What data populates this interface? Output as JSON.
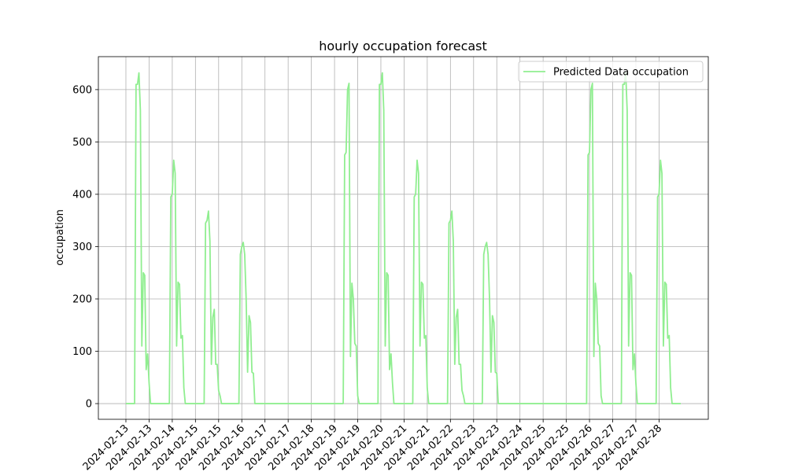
{
  "chart_data": {
    "type": "line",
    "title": "hourly occupation forecast",
    "y_label": "occupation",
    "x": [
      0,
      1,
      2,
      3,
      4,
      5,
      6,
      7,
      8,
      9,
      10,
      11,
      12,
      13,
      14,
      15,
      16,
      17,
      18,
      19,
      20,
      21,
      22,
      23,
      24,
      25,
      26,
      27,
      28,
      29,
      30,
      31,
      32,
      33,
      34,
      35,
      36,
      37,
      38,
      39,
      40,
      41,
      42,
      43,
      44,
      45,
      46,
      47,
      48,
      49,
      50,
      51,
      52,
      53,
      54,
      55,
      56,
      57,
      58,
      59,
      60,
      61,
      62,
      63,
      64,
      65,
      66,
      67,
      68,
      69,
      70,
      71,
      72,
      73,
      74,
      75,
      76,
      77,
      78,
      79,
      80,
      81,
      82,
      83,
      84,
      85,
      86,
      87,
      88,
      89,
      90,
      91,
      92,
      93,
      94,
      95,
      96,
      97,
      98,
      99,
      100,
      101,
      102,
      103,
      104,
      105,
      106,
      107,
      108,
      109,
      110,
      111,
      112,
      113,
      114,
      115,
      116,
      117,
      118,
      119,
      120,
      121,
      122,
      123,
      124,
      125,
      126,
      127,
      128,
      129,
      130,
      131,
      132,
      133,
      134,
      135,
      136,
      137,
      138,
      139,
      140,
      141,
      142,
      143,
      144,
      145,
      146,
      147,
      148,
      149,
      150,
      151,
      152,
      153,
      154,
      155,
      156,
      157,
      158,
      159,
      160,
      161,
      162,
      163,
      164,
      165,
      166,
      167,
      168,
      169,
      170,
      171,
      172,
      173,
      174,
      175,
      176,
      177,
      178,
      179,
      180,
      181,
      182,
      183,
      184,
      185,
      186,
      187,
      188,
      189,
      190,
      191,
      192,
      193,
      194,
      195,
      196,
      197,
      198,
      199,
      200,
      201,
      202,
      203,
      204,
      205,
      206,
      207,
      208,
      209,
      210,
      211,
      212,
      213,
      214,
      215,
      216,
      217,
      218,
      219,
      220,
      221,
      222,
      223,
      224,
      225,
      226,
      227,
      228,
      229,
      230,
      231,
      232,
      233,
      234,
      235,
      236,
      237,
      238,
      239,
      240,
      241,
      242,
      243,
      244,
      245,
      246,
      247,
      248,
      249,
      250,
      251,
      252,
      253,
      254,
      255,
      256,
      257,
      258,
      259,
      260,
      261,
      262,
      263,
      264,
      265,
      266,
      267,
      268,
      269,
      270,
      271,
      272,
      273,
      274,
      275,
      276,
      277,
      278,
      279,
      280,
      281,
      282,
      283,
      284,
      285,
      286,
      287,
      288,
      289,
      290,
      291,
      292,
      293,
      294,
      295,
      296,
      297,
      298,
      299,
      300,
      301,
      302,
      303,
      304,
      305,
      306,
      307,
      308,
      309,
      310,
      311,
      312,
      313,
      314,
      315,
      316,
      317,
      318,
      319,
      320,
      321,
      322,
      323,
      324,
      325,
      326,
      327,
      328,
      329,
      330,
      331,
      332,
      333,
      334,
      335,
      336,
      337,
      338,
      339,
      340,
      341,
      342,
      343,
      344,
      345,
      346,
      347,
      348,
      349,
      350,
      351,
      352,
      353,
      354,
      355,
      356,
      357,
      358,
      359,
      360,
      361,
      362,
      363,
      364,
      365,
      366,
      367,
      368,
      369,
      370,
      371,
      372,
      373,
      374,
      375,
      376,
      377,
      378,
      379,
      380,
      381,
      382,
      383
    ],
    "series": [
      {
        "name": "Predicted Data occupation",
        "color": "#90ee90",
        "values": [
          0,
          0,
          0,
          0,
          0,
          0,
          0,
          610,
          610,
          632,
          560,
          110,
          250,
          245,
          65,
          95,
          40,
          0,
          0,
          0,
          0,
          0,
          0,
          0,
          0,
          0,
          0,
          0,
          0,
          0,
          0,
          395,
          400,
          465,
          440,
          110,
          232,
          228,
          125,
          130,
          30,
          0,
          0,
          0,
          0,
          0,
          0,
          0,
          0,
          0,
          0,
          0,
          0,
          0,
          0,
          345,
          350,
          368,
          310,
          75,
          165,
          180,
          75,
          75,
          25,
          15,
          0,
          0,
          0,
          0,
          0,
          0,
          0,
          0,
          0,
          0,
          0,
          0,
          0,
          285,
          300,
          308,
          285,
          200,
          60,
          168,
          155,
          60,
          58,
          0,
          0,
          0,
          0,
          0,
          0,
          0,
          0,
          0,
          0,
          0,
          0,
          0,
          0,
          0,
          0,
          0,
          0,
          0,
          0,
          0,
          0,
          0,
          0,
          0,
          0,
          0,
          0,
          0,
          0,
          0,
          0,
          0,
          0,
          0,
          0,
          0,
          0,
          0,
          0,
          0,
          0,
          0,
          0,
          0,
          0,
          0,
          0,
          0,
          0,
          0,
          0,
          0,
          0,
          0,
          0,
          0,
          0,
          0,
          0,
          0,
          0,
          475,
          480,
          600,
          612,
          90,
          230,
          200,
          115,
          110,
          15,
          0,
          0,
          0,
          0,
          0,
          0,
          0,
          0,
          0,
          0,
          0,
          0,
          0,
          0,
          610,
          610,
          632,
          560,
          110,
          250,
          245,
          65,
          95,
          40,
          0,
          0,
          0,
          0,
          0,
          0,
          0,
          0,
          0,
          0,
          0,
          0,
          0,
          0,
          395,
          400,
          465,
          440,
          110,
          232,
          228,
          125,
          130,
          30,
          0,
          0,
          0,
          0,
          0,
          0,
          0,
          0,
          0,
          0,
          0,
          0,
          0,
          0,
          345,
          350,
          368,
          310,
          75,
          165,
          180,
          75,
          75,
          25,
          15,
          0,
          0,
          0,
          0,
          0,
          0,
          0,
          0,
          0,
          0,
          0,
          0,
          0,
          285,
          300,
          308,
          285,
          200,
          60,
          168,
          155,
          60,
          58,
          0,
          0,
          0,
          0,
          0,
          0,
          0,
          0,
          0,
          0,
          0,
          0,
          0,
          0,
          0,
          0,
          0,
          0,
          0,
          0,
          0,
          0,
          0,
          0,
          0,
          0,
          0,
          0,
          0,
          0,
          0,
          0,
          0,
          0,
          0,
          0,
          0,
          0,
          0,
          0,
          0,
          0,
          0,
          0,
          0,
          0,
          0,
          0,
          0,
          0,
          0,
          0,
          0,
          0,
          0,
          0,
          0,
          0,
          0,
          0,
          0,
          0,
          475,
          480,
          600,
          612,
          90,
          230,
          200,
          115,
          110,
          15,
          0,
          0,
          0,
          0,
          0,
          0,
          0,
          0,
          0,
          0,
          0,
          0,
          0,
          0,
          610,
          610,
          632,
          560,
          110,
          250,
          245,
          65,
          95,
          40,
          0,
          0,
          0,
          0,
          0,
          0,
          0,
          0,
          0,
          0,
          0,
          0,
          0,
          0,
          395,
          400,
          465,
          440,
          110,
          232,
          228,
          125,
          130,
          30,
          0,
          0,
          0,
          0,
          0,
          0,
          0
        ]
      }
    ],
    "xlim": [
      -19,
      402
    ],
    "xticks": [
      {
        "value": 0,
        "label": "2024-02-13"
      },
      {
        "value": 16,
        "label": "2024-02-13"
      },
      {
        "value": 32,
        "label": "2024-02-14"
      },
      {
        "value": 48,
        "label": "2024-02-15"
      },
      {
        "value": 64,
        "label": "2024-02-15"
      },
      {
        "value": 80,
        "label": "2024-02-16"
      },
      {
        "value": 96,
        "label": "2024-02-17"
      },
      {
        "value": 112,
        "label": "2024-02-17"
      },
      {
        "value": 128,
        "label": "2024-02-18"
      },
      {
        "value": 144,
        "label": "2024-02-19"
      },
      {
        "value": 160,
        "label": "2024-02-19"
      },
      {
        "value": 176,
        "label": "2024-02-20"
      },
      {
        "value": 192,
        "label": "2024-02-21"
      },
      {
        "value": 208,
        "label": "2024-02-21"
      },
      {
        "value": 224,
        "label": "2024-02-22"
      },
      {
        "value": 240,
        "label": "2024-02-23"
      },
      {
        "value": 256,
        "label": "2024-02-23"
      },
      {
        "value": 272,
        "label": "2024-02-24"
      },
      {
        "value": 288,
        "label": "2024-02-25"
      },
      {
        "value": 304,
        "label": "2024-02-25"
      },
      {
        "value": 320,
        "label": "2024-02-26"
      },
      {
        "value": 336,
        "label": "2024-02-27"
      },
      {
        "value": 352,
        "label": "2024-02-27"
      },
      {
        "value": 368,
        "label": "2024-02-28"
      }
    ],
    "ylim": [
      -30,
      663
    ],
    "yticks": [
      0,
      100,
      200,
      300,
      400,
      500,
      600
    ],
    "grid": true,
    "legend": "upper right"
  }
}
